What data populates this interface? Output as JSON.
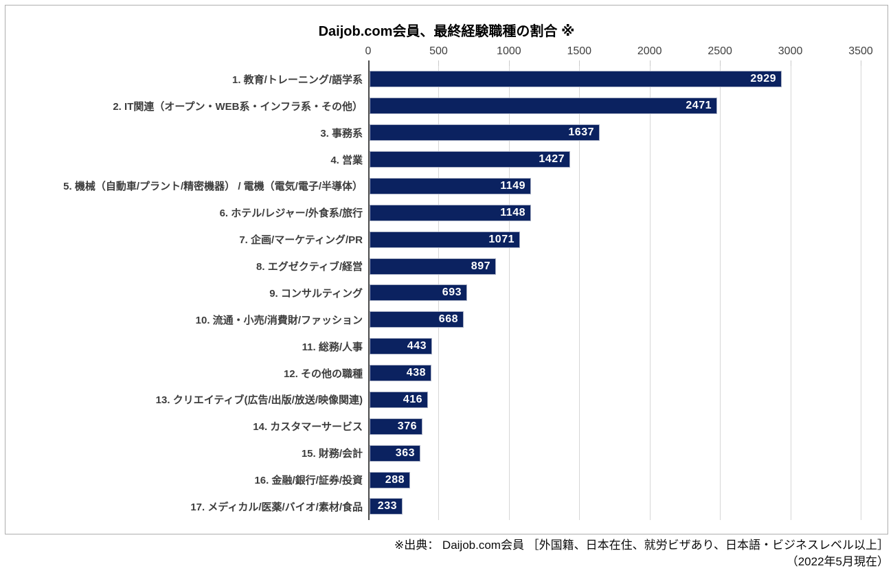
{
  "chart_data": {
    "type": "bar",
    "orientation": "horizontal",
    "title": "Daijob.com会員、最終経験職種の割合 ※",
    "categories": [
      "1. 教育/トレーニング/語学系",
      "2. IT関連（オープン・WEB系・インフラ系・その他）",
      "3. 事務系",
      "4. 営業",
      "5. 機械（自動車/プラント/精密機器） / 電機（電気/電子/半導体）",
      "6. ホテル/レジャー/外食系/旅行",
      "7. 企画/マーケティング/PR",
      "8. エグゼクティブ/経営",
      "9. コンサルティング",
      "10. 流通・小売/消費財/ファッション",
      "11. 総務/人事",
      "12. その他の職種",
      "13. クリエイティブ(広告/出版/放送/映像関連)",
      "14. カスタマーサービス",
      "15. 財務/会計",
      "16. 金融/銀行/証券/投資",
      "17. メディカル/医薬/バイオ/素材/食品"
    ],
    "values": [
      2929,
      2471,
      1637,
      1427,
      1149,
      1148,
      1071,
      897,
      693,
      668,
      443,
      438,
      416,
      376,
      363,
      288,
      233
    ],
    "xlim": [
      0,
      3500
    ],
    "xticks": [
      0,
      500,
      1000,
      1500,
      2000,
      2500,
      3000,
      3500
    ],
    "grid": "vertical",
    "value_label_position": "inside-end",
    "legend": "none",
    "colors": {
      "bar": "#0b2260",
      "bar_border": "#a9b0c4",
      "value_label": "#ffffff",
      "gridline": "#d6d6d6",
      "axis_line": "#4a4a4a",
      "tick_label": "#404040",
      "category_label": "#3d3d3d",
      "title": "#000000",
      "frame_border": "#aeaeae"
    }
  },
  "footer": {
    "line1": "※出典： Daijob.com会員 ［外国籍、日本在住、就労ビザあり、日本語・ビジネスレベル以上］",
    "line2": "（2022年5月現在）"
  }
}
